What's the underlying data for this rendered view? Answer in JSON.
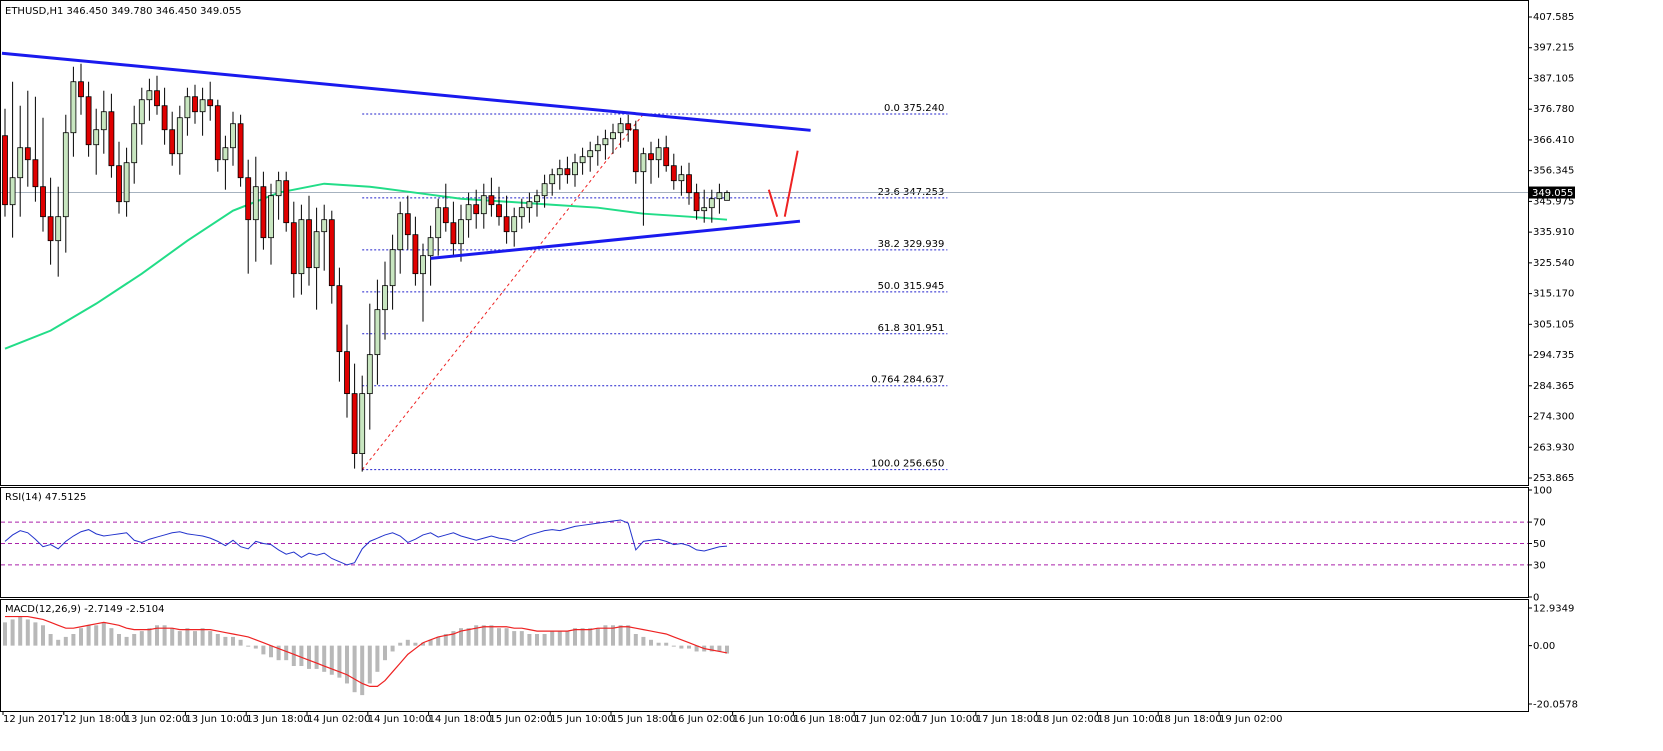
{
  "header": {
    "main": "ETHUSD,H1  346.450 349.780 346.450 349.055",
    "rsi": "RSI(14) 47.5125",
    "macd": "MACD(12,26,9) -2.7149 -2.5104"
  },
  "colors": {
    "bull": "#c8e6c0",
    "bear": "#e00000",
    "wick": "#000000",
    "ma": "#22dd88",
    "trend": "#1a1aee",
    "fibo": "#2222cc",
    "fibo_diag": "#ee2222",
    "rsi_line": "#2233cc",
    "rsi_levels": "#aa22aa",
    "macd_hist": "#b8b8b8",
    "macd_signal": "#ee2222",
    "arrow": "#ee2222"
  },
  "chart_data": {
    "type": "candlestick",
    "symbol": "ETHUSD",
    "timeframe": "H1",
    "ylim": [
      253.865,
      407.585
    ],
    "price_ticks": [
      "407.585",
      "397.215",
      "387.105",
      "376.780",
      "366.410",
      "356.345",
      "345.975",
      "335.910",
      "325.540",
      "315.170",
      "305.105",
      "294.735",
      "284.365",
      "274.300",
      "263.930",
      "253.865"
    ],
    "current_price": "349.055",
    "current_price_value": 349.055,
    "time_labels": [
      "12 Jun 2017",
      "12 Jun 18:00",
      "13 Jun 02:00",
      "13 Jun 10:00",
      "13 Jun 18:00",
      "14 Jun 02:00",
      "14 Jun 10:00",
      "14 Jun 18:00",
      "15 Jun 02:00",
      "15 Jun 10:00",
      "15 Jun 18:00",
      "16 Jun 02:00",
      "16 Jun 10:00",
      "16 Jun 18:00",
      "17 Jun 02:00",
      "17 Jun 10:00",
      "17 Jun 18:00",
      "18 Jun 02:00",
      "18 Jun 10:00",
      "18 Jun 18:00",
      "19 Jun 02:00"
    ],
    "bars_per_label": 8,
    "candles": [
      [
        368,
        377,
        341,
        345
      ],
      [
        345,
        386,
        334,
        354
      ],
      [
        354,
        378,
        341,
        364
      ],
      [
        364,
        383,
        351,
        360
      ],
      [
        360,
        381,
        346,
        351
      ],
      [
        351,
        374,
        336,
        341
      ],
      [
        341,
        354,
        325,
        333
      ],
      [
        333,
        351,
        321,
        341
      ],
      [
        341,
        375,
        329,
        369
      ],
      [
        369,
        391,
        361,
        386
      ],
      [
        386,
        392,
        375,
        381
      ],
      [
        381,
        386,
        361,
        365
      ],
      [
        365,
        377,
        355,
        370
      ],
      [
        370,
        383,
        362,
        376
      ],
      [
        376,
        382,
        354,
        358
      ],
      [
        358,
        366,
        342,
        346
      ],
      [
        346,
        364,
        341,
        359
      ],
      [
        359,
        378,
        352,
        372
      ],
      [
        372,
        384,
        365,
        380
      ],
      [
        380,
        387,
        373,
        383
      ],
      [
        383,
        388,
        375,
        378
      ],
      [
        378,
        384,
        365,
        370
      ],
      [
        370,
        376,
        358,
        362
      ],
      [
        362,
        378,
        355,
        374
      ],
      [
        374,
        384,
        368,
        381
      ],
      [
        381,
        385,
        372,
        376
      ],
      [
        376,
        384,
        368,
        380
      ],
      [
        380,
        386,
        373,
        378
      ],
      [
        378,
        380,
        356,
        360
      ],
      [
        360,
        368,
        350,
        364
      ],
      [
        364,
        376,
        358,
        372
      ],
      [
        372,
        375,
        351,
        354
      ],
      [
        354,
        360,
        322,
        340
      ],
      [
        340,
        361,
        326,
        351
      ],
      [
        351,
        356,
        330,
        334
      ],
      [
        334,
        352,
        325,
        348
      ],
      [
        348,
        356,
        340,
        353
      ],
      [
        353,
        356,
        336,
        339
      ],
      [
        339,
        346,
        314,
        322
      ],
      [
        322,
        345,
        315,
        340
      ],
      [
        340,
        348,
        318,
        324
      ],
      [
        324,
        344,
        310,
        336
      ],
      [
        336,
        345,
        323,
        340
      ],
      [
        340,
        343,
        312,
        318
      ],
      [
        318,
        324,
        286,
        296
      ],
      [
        296,
        305,
        274,
        282
      ],
      [
        282,
        292,
        257,
        262
      ],
      [
        262,
        288,
        256,
        282
      ],
      [
        282,
        312,
        270,
        295
      ],
      [
        295,
        320,
        285,
        310
      ],
      [
        310,
        326,
        300,
        318
      ],
      [
        318,
        335,
        310,
        330
      ],
      [
        330,
        346,
        322,
        342
      ],
      [
        342,
        348,
        330,
        335
      ],
      [
        335,
        341,
        318,
        322
      ],
      [
        322,
        332,
        306,
        328
      ],
      [
        328,
        338,
        318,
        334
      ],
      [
        334,
        347,
        328,
        344
      ],
      [
        344,
        352,
        336,
        339
      ],
      [
        339,
        346,
        328,
        332
      ],
      [
        332,
        345,
        326,
        340
      ],
      [
        340,
        349,
        334,
        345
      ],
      [
        345,
        350,
        337,
        342
      ],
      [
        342,
        352,
        337,
        348
      ],
      [
        348,
        354,
        341,
        345
      ],
      [
        345,
        351,
        338,
        341
      ],
      [
        341,
        348,
        332,
        336
      ],
      [
        336,
        344,
        331,
        341
      ],
      [
        341,
        347,
        337,
        344
      ],
      [
        344,
        349,
        339,
        346
      ],
      [
        346,
        350,
        341,
        348
      ],
      [
        348,
        355,
        344,
        352
      ],
      [
        352,
        357,
        348,
        355
      ],
      [
        355,
        360,
        350,
        357
      ],
      [
        357,
        361,
        352,
        355
      ],
      [
        355,
        362,
        351,
        359
      ],
      [
        359,
        364,
        355,
        361
      ],
      [
        361,
        366,
        356,
        363
      ],
      [
        363,
        368,
        358,
        365
      ],
      [
        365,
        370,
        360,
        367
      ],
      [
        367,
        372,
        362,
        369
      ],
      [
        369,
        374,
        364,
        372
      ],
      [
        372,
        375,
        366,
        370
      ],
      [
        370,
        373,
        352,
        356
      ],
      [
        356,
        364,
        338,
        362
      ],
      [
        362,
        366,
        352,
        360
      ],
      [
        360,
        367,
        354,
        364
      ],
      [
        364,
        368,
        356,
        358
      ],
      [
        358,
        362,
        350,
        353
      ],
      [
        353,
        358,
        348,
        355
      ],
      [
        355,
        359,
        345,
        349
      ],
      [
        349,
        352,
        340,
        343
      ],
      [
        343,
        350,
        339,
        344
      ],
      [
        344,
        350,
        339,
        347
      ],
      [
        347,
        352,
        342,
        349
      ],
      [
        346.45,
        349.78,
        346.45,
        349.055
      ]
    ],
    "ma_line": [
      [
        0,
        297
      ],
      [
        6,
        303
      ],
      [
        12,
        312
      ],
      [
        18,
        322
      ],
      [
        24,
        333
      ],
      [
        30,
        343
      ],
      [
        36,
        349
      ],
      [
        42,
        352
      ],
      [
        48,
        351
      ],
      [
        54,
        349
      ],
      [
        60,
        347
      ],
      [
        66,
        346
      ],
      [
        72,
        345
      ],
      [
        78,
        344
      ],
      [
        84,
        342
      ],
      [
        90,
        341
      ],
      [
        95,
        340
      ]
    ],
    "trendlines": [
      {
        "from": [
          -0.4,
          395.5
        ],
        "to": [
          106,
          369.8
        ]
      },
      {
        "from": [
          56,
          327.1
        ],
        "to": [
          104.6,
          339.5
        ]
      }
    ],
    "fibo": {
      "from_bar": 47,
      "extend_to_bar": 124,
      "low": 256.65,
      "high": 375.24,
      "high_bar": 84,
      "levels": [
        {
          "label": "0.0  375.240",
          "value": 375.24
        },
        {
          "label": "23.6  347.253",
          "value": 347.253
        },
        {
          "label": "38.2  329.939",
          "value": 329.939
        },
        {
          "label": "50.0  315.945",
          "value": 315.945
        },
        {
          "label": "61.8  301.951",
          "value": 301.951
        },
        {
          "label": "0.764  284.637",
          "value": 284.637
        },
        {
          "label": "100.0  256.650",
          "value": 256.65
        }
      ]
    },
    "arrows": [
      {
        "from": [
          100.5,
          350
        ],
        "to": [
          101.6,
          341
        ]
      },
      {
        "from": [
          102.6,
          341
        ],
        "to": [
          104.3,
          363
        ]
      }
    ],
    "rsi": {
      "ylim": [
        0,
        100
      ],
      "ticks": [
        "100",
        "70",
        "50",
        "30",
        "0"
      ],
      "levels": [
        70,
        50,
        30
      ],
      "values": [
        52,
        58,
        62,
        60,
        54,
        47,
        49,
        45,
        52,
        57,
        61,
        63,
        59,
        57,
        58,
        59,
        60,
        53,
        51,
        54,
        56,
        58,
        60,
        61,
        59,
        58,
        57,
        55,
        52,
        48,
        53,
        47,
        45,
        52,
        50,
        49,
        44,
        40,
        42,
        37,
        41,
        39,
        41,
        36,
        33,
        30,
        32,
        45,
        52,
        55,
        58,
        60,
        57,
        51,
        54,
        58,
        60,
        56,
        58,
        60,
        57,
        55,
        53,
        55,
        57,
        55,
        54,
        52,
        55,
        58,
        60,
        62,
        63,
        62,
        64,
        66,
        67,
        68,
        69,
        70,
        71,
        72,
        69,
        44,
        52,
        53,
        54,
        52,
        49,
        50,
        48,
        44,
        43,
        45,
        47,
        47.5
      ]
    },
    "macd": {
      "ylim": [
        -20.0578,
        12.9349
      ],
      "ticks": [
        "12.9349",
        "0.00",
        "-20.0578"
      ],
      "hist": [
        8,
        9,
        10,
        9,
        8,
        7,
        4,
        2,
        3,
        4,
        6,
        7,
        7,
        8,
        6,
        4,
        3,
        4,
        5,
        6,
        7,
        7,
        6,
        5,
        6,
        5,
        6,
        5,
        4,
        3,
        3,
        2,
        0,
        -1,
        -3,
        -4,
        -5,
        -5,
        -7,
        -7,
        -8,
        -8,
        -9,
        -10,
        -11,
        -13,
        -16,
        -17,
        -13,
        -9,
        -5,
        -2,
        1,
        2,
        1,
        1,
        2,
        3,
        4,
        5,
        6,
        6,
        7,
        7,
        7,
        6,
        6,
        5,
        5,
        4,
        4,
        4,
        5,
        5,
        5,
        6,
        6,
        6,
        6,
        7,
        7,
        7,
        7,
        4,
        3,
        2,
        1,
        1,
        0,
        -1,
        -1,
        -2,
        -2,
        -2,
        -2,
        -2.7149
      ],
      "signal": [
        10,
        10,
        10,
        10,
        9.5,
        9,
        8,
        7,
        6,
        6,
        6.5,
        7,
        7.5,
        8,
        7.5,
        7,
        6,
        5.5,
        5.5,
        5.5,
        6,
        6,
        6,
        5.5,
        5.5,
        5.5,
        5.5,
        5.5,
        5,
        4.5,
        4,
        3.5,
        3,
        2,
        1,
        0,
        -1,
        -2,
        -3,
        -4,
        -5,
        -6,
        -7,
        -8,
        -9,
        -10,
        -11.5,
        -13,
        -14,
        -14,
        -12,
        -9,
        -6,
        -3,
        -1,
        1,
        2,
        3,
        3.5,
        4,
        5,
        5.5,
        6,
        6.5,
        6.5,
        6.5,
        6.5,
        6,
        6,
        5.5,
        5,
        5,
        5,
        5,
        5,
        5.5,
        5.5,
        5.5,
        6,
        6,
        6,
        6.5,
        6.5,
        6,
        5.5,
        5,
        4.5,
        4,
        3,
        2,
        1,
        0,
        -1,
        -1.5,
        -2,
        -2.5104
      ]
    }
  }
}
